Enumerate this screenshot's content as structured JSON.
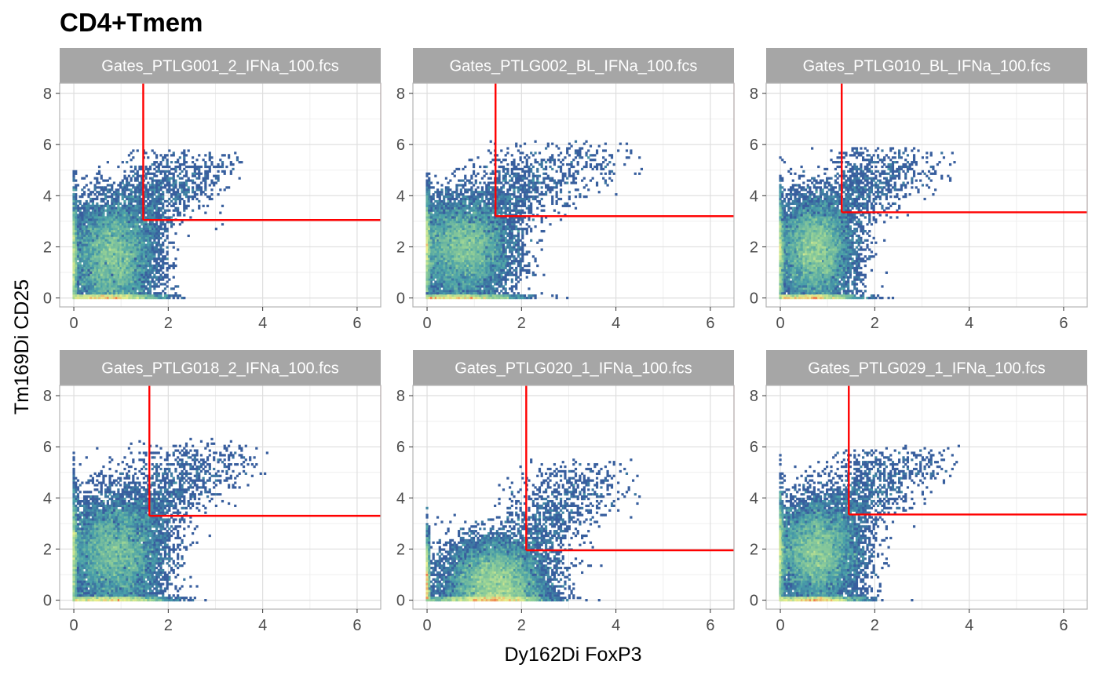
{
  "chart_data": {
    "type": "scatter",
    "title": "CD4+Tmem",
    "xlabel": "Dy162Di FoxP3",
    "ylabel": "Tm169Di CD25",
    "xlim": [
      -0.3,
      6.5
    ],
    "ylim": [
      -0.35,
      8.4
    ],
    "x_ticks": [
      0,
      2,
      4,
      6
    ],
    "y_ticks": [
      0,
      2,
      4,
      6,
      8
    ],
    "grid": true,
    "plot_style": "hexbin density (blue-green-yellow-red) with quadrant gate",
    "colors": {
      "strip_bg": "#a6a6a6",
      "gate": "#ff0000",
      "grid_major": "#dedede",
      "grid_minor": "#efefef",
      "panel_border": "#b3b3b3",
      "density_low": "#3f3a92",
      "density_mid": "#4aa0a8",
      "density_high": "#e8ef8e",
      "density_peak": "#f07b4b"
    },
    "panels": [
      {
        "name": "Gates_PTLG001_2_IFNa_100.fcs",
        "gate_x": 1.47,
        "gate_y": 3.05,
        "cluster": {
          "cx": 0.85,
          "cy": 1.7,
          "sx": 0.45,
          "sy": 1.1,
          "xmax": 3.6,
          "ymax": 5.8
        }
      },
      {
        "name": "Gates_PTLG002_BL_IFNa_100.fcs",
        "gate_x": 1.45,
        "gate_y": 3.2,
        "cluster": {
          "cx": 0.8,
          "cy": 2.0,
          "sx": 0.5,
          "sy": 1.0,
          "xmax": 4.6,
          "ymax": 6.1
        }
      },
      {
        "name": "Gates_PTLG010_BL_IFNa_100.fcs",
        "gate_x": 1.3,
        "gate_y": 3.35,
        "cluster": {
          "cx": 0.75,
          "cy": 1.9,
          "sx": 0.4,
          "sy": 1.0,
          "xmax": 3.7,
          "ymax": 5.9
        }
      },
      {
        "name": "Gates_PTLG018_2_IFNa_100.fcs",
        "gate_x": 1.6,
        "gate_y": 3.3,
        "cluster": {
          "cx": 0.9,
          "cy": 1.9,
          "sx": 0.5,
          "sy": 1.1,
          "xmax": 4.2,
          "ymax": 6.3
        }
      },
      {
        "name": "Gates_PTLG020_1_IFNa_100.fcs",
        "gate_x": 2.1,
        "gate_y": 1.95,
        "cluster": {
          "cx": 1.45,
          "cy": 0.8,
          "sx": 0.55,
          "sy": 0.8,
          "xmax": 4.6,
          "ymax": 5.5
        }
      },
      {
        "name": "Gates_PTLG029_1_IFNa_100.fcs",
        "gate_x": 1.45,
        "gate_y": 3.35,
        "cluster": {
          "cx": 0.8,
          "cy": 1.9,
          "sx": 0.45,
          "sy": 1.0,
          "xmax": 3.8,
          "ymax": 6.0
        }
      }
    ]
  }
}
